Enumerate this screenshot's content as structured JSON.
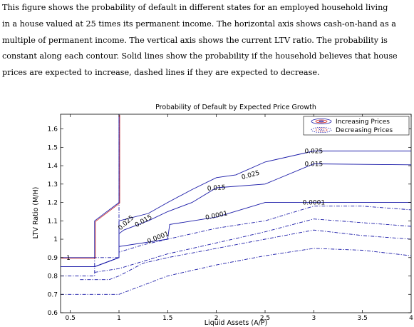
{
  "caption": {
    "lines": [
      "This figure shows the probability of default in different states for an employed household living",
      "in a house valued at 25 times its permanent income. The horizontal axis shows cash-on-hand as a",
      "multiple of permanent income. The vertical axis shows the current LTV ratio. The probability is",
      "constant along each contour. Solid lines show the probability if the household believes that house",
      "prices are expected to increase, dashed lines if they are expected to decrease."
    ]
  },
  "chart_data": {
    "type": "line",
    "title": "Probability of Default by Expected Price Growth",
    "xlabel": "Liquid Assets (A/P)",
    "ylabel": "LTV Ratio (M/H)",
    "xlim": [
      0.4,
      4.0
    ],
    "ylim": [
      0.6,
      1.68
    ],
    "xticks": [
      "0.5",
      "1",
      "1.5",
      "2",
      "2.5",
      "3",
      "3.5",
      "4"
    ],
    "yticks": [
      "0.6",
      "0.7",
      "0.8",
      "0.9",
      "1",
      "1.1",
      "1.2",
      "1.3",
      "1.4",
      "1.5",
      "1.6"
    ],
    "grid": false,
    "legend": {
      "position": "top-right",
      "entries": [
        "Increasing Prices",
        "Decreasing Prices"
      ]
    },
    "colors": {
      "increasing": "#1a1aa8",
      "decreasing": "#1a1aa8",
      "red_band": "#cc2222"
    },
    "series": [
      {
        "group": "increasing",
        "style": "solid",
        "level": "1",
        "x": [
          0.4,
          0.75,
          0.75,
          1.0,
          1.0
        ],
        "y": [
          0.9,
          0.9,
          1.1,
          1.2,
          1.68
        ]
      },
      {
        "group": "increasing",
        "style": "solid",
        "level": "0.025",
        "x": [
          0.4,
          0.75,
          1.0,
          1.0,
          1.3,
          1.5,
          1.75,
          2.0,
          2.2,
          2.5,
          3.0,
          4.0
        ],
        "y": [
          0.85,
          0.85,
          0.9,
          1.1,
          1.14,
          1.2,
          1.27,
          1.335,
          1.35,
          1.42,
          1.48,
          1.48
        ]
      },
      {
        "group": "increasing",
        "style": "solid",
        "level": "0.015",
        "x": [
          0.4,
          0.75,
          1.0,
          1.0,
          1.05,
          1.3,
          1.5,
          1.75,
          2.0,
          2.5,
          3.0,
          4.0
        ],
        "y": [
          0.85,
          0.85,
          0.9,
          1.03,
          1.05,
          1.1,
          1.15,
          1.2,
          1.28,
          1.3,
          1.41,
          1.405
        ]
      },
      {
        "group": "increasing",
        "style": "solid",
        "level": "0.0001",
        "x": [
          0.4,
          0.75,
          1.0,
          1.0,
          1.5,
          1.52,
          2.0,
          2.5,
          3.0,
          4.0
        ],
        "y": [
          0.85,
          0.85,
          0.9,
          0.96,
          1.0,
          1.08,
          1.12,
          1.2,
          1.2,
          1.2
        ]
      },
      {
        "group": "decreasing",
        "style": "dashdot",
        "x": [
          0.4,
          0.75,
          0.75,
          1.0,
          1.0
        ],
        "y": [
          0.8,
          0.8,
          0.9,
          0.9,
          1.68
        ]
      },
      {
        "group": "decreasing",
        "style": "dashdot",
        "x": [
          0.75,
          1.0,
          1.0,
          1.25,
          1.5,
          1.75,
          2.0,
          2.5,
          3.0,
          3.5,
          4.0
        ],
        "y": [
          0.85,
          0.9,
          0.93,
          0.97,
          1.0,
          1.03,
          1.06,
          1.1,
          1.18,
          1.18,
          1.16
        ]
      },
      {
        "group": "decreasing",
        "style": "dashdot",
        "x": [
          0.75,
          1.0,
          1.25,
          1.5,
          2.0,
          2.5,
          3.0,
          3.5,
          4.0
        ],
        "y": [
          0.82,
          0.84,
          0.88,
          0.92,
          0.98,
          1.04,
          1.11,
          1.09,
          1.07
        ]
      },
      {
        "group": "decreasing",
        "style": "dashdot",
        "x": [
          0.6,
          0.9,
          1.0,
          1.25,
          1.5,
          2.0,
          2.5,
          3.0,
          3.5,
          4.0
        ],
        "y": [
          0.78,
          0.78,
          0.8,
          0.87,
          0.9,
          0.95,
          1.0,
          1.05,
          1.02,
          1.0
        ]
      },
      {
        "group": "decreasing",
        "style": "dashdot",
        "x": [
          0.4,
          0.75,
          1.0,
          1.25,
          1.5,
          2.0,
          2.5,
          3.0,
          3.5,
          4.0
        ],
        "y": [
          0.7,
          0.7,
          0.7,
          0.75,
          0.8,
          0.86,
          0.91,
          0.95,
          0.94,
          0.91
        ]
      }
    ],
    "contour_labels": [
      {
        "text": "1",
        "x": 0.48,
        "y": 0.9,
        "rotate": 0
      },
      {
        "text": "0.025",
        "x": 1.07,
        "y": 1.09,
        "rotate": -42
      },
      {
        "text": "0.015",
        "x": 1.25,
        "y": 1.1,
        "rotate": -30
      },
      {
        "text": "0.0001",
        "x": 1.4,
        "y": 1.01,
        "rotate": -22
      },
      {
        "text": "0.0001",
        "x": 2.0,
        "y": 1.13,
        "rotate": -12
      },
      {
        "text": "0.015",
        "x": 2.0,
        "y": 1.28,
        "rotate": -4
      },
      {
        "text": "0.025",
        "x": 2.35,
        "y": 1.35,
        "rotate": -16
      },
      {
        "text": "0.025",
        "x": 3.0,
        "y": 1.48,
        "rotate": 0
      },
      {
        "text": "0.015",
        "x": 3.0,
        "y": 1.41,
        "rotate": 0
      },
      {
        "text": "0.0001",
        "x": 3.0,
        "y": 1.2,
        "rotate": 0
      }
    ]
  }
}
